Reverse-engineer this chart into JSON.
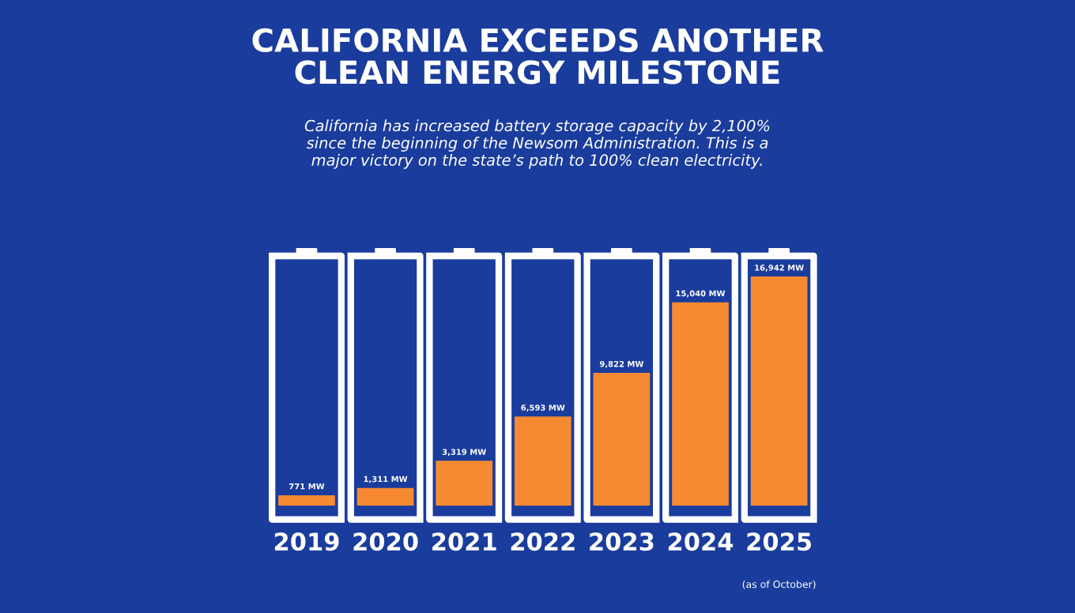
{
  "chart_data": {
    "type": "bar",
    "title": "CALIFORNIA EXCEEDS ANOTHER\nCLEAN ENERGY MILESTONE",
    "subtitle": "California has increased battery storage capacity by 2,100%\nsince the beginning of the Newsom Administration. This is a\nmajor victory on the state’s path to 100% clean electricity.",
    "categories": [
      "2019",
      "2020",
      "2021",
      "2022",
      "2023",
      "2024",
      "2025"
    ],
    "values": [
      771,
      1311,
      3319,
      6593,
      9822,
      15040,
      16942
    ],
    "value_labels": [
      "771 MW",
      "1,311 MW",
      "3,319 MW",
      "6,593 MW",
      "9,822 MW",
      "15,040 MW",
      "16,942 MW"
    ],
    "color": "#f58a33",
    "annotations": [
      "(as of October)"
    ],
    "grid": false,
    "legend": false
  }
}
